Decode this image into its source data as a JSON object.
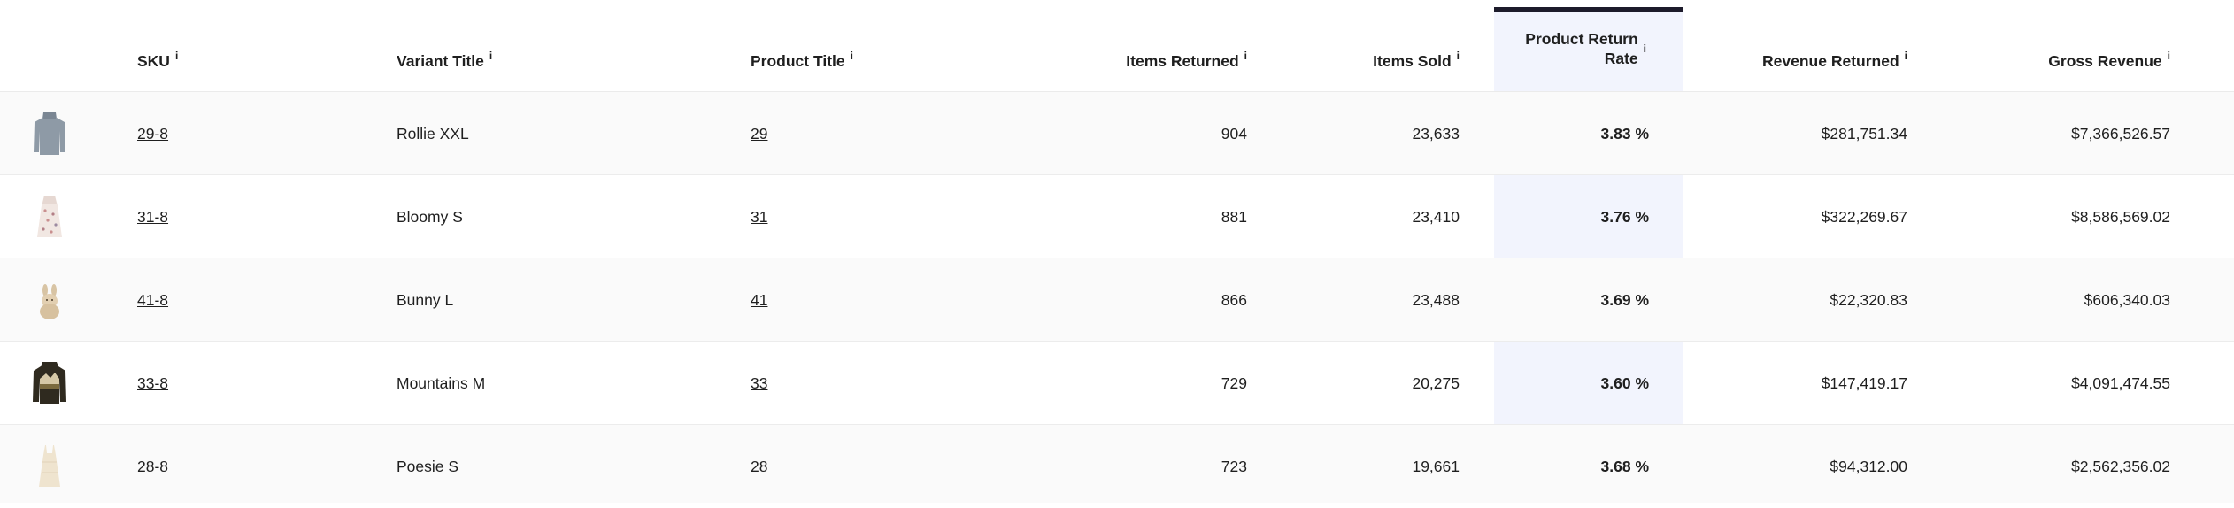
{
  "columns": {
    "sku": "SKU",
    "variant_title": "Variant Title",
    "product_title": "Product Title",
    "items_returned": "Items Returned",
    "items_sold": "Items Sold",
    "return_rate_line1": "Product Return",
    "return_rate_line2": "Rate",
    "revenue_returned": "Revenue Returned",
    "gross_revenue": "Gross Revenue",
    "info_glyph": "i"
  },
  "rows": [
    {
      "thumbnail": "grey-knit-sweater-image",
      "sku": "29-8",
      "variant_title": "Rollie XXL",
      "product_title": "29",
      "items_returned": "904",
      "items_sold": "23,633",
      "return_rate": "3.83 %",
      "revenue_returned": "$281,751.34",
      "gross_revenue": "$7,366,526.57"
    },
    {
      "thumbnail": "floral-dress-image",
      "sku": "31-8",
      "variant_title": "Bloomy S",
      "product_title": "31",
      "items_returned": "881",
      "items_sold": "23,410",
      "return_rate": "3.76 %",
      "revenue_returned": "$322,269.67",
      "gross_revenue": "$8,586,569.02"
    },
    {
      "thumbnail": "bunny-toy-image",
      "sku": "41-8",
      "variant_title": "Bunny L",
      "product_title": "41",
      "items_returned": "866",
      "items_sold": "23,488",
      "return_rate": "3.69 %",
      "revenue_returned": "$22,320.83",
      "gross_revenue": "$606,340.03"
    },
    {
      "thumbnail": "mountain-sweater-image",
      "sku": "33-8",
      "variant_title": "Mountains M",
      "product_title": "33",
      "items_returned": "729",
      "items_sold": "20,275",
      "return_rate": "3.60 %",
      "revenue_returned": "$147,419.17",
      "gross_revenue": "$4,091,474.55"
    },
    {
      "thumbnail": "cream-dress-image",
      "sku": "28-8",
      "variant_title": "Poesie S",
      "product_title": "28",
      "items_returned": "723",
      "items_sold": "19,661",
      "return_rate": "3.68 %",
      "revenue_returned": "$94,312.00",
      "gross_revenue": "$2,562,356.02"
    }
  ],
  "colors": {
    "highlight_column_bg": "#f2f4fd",
    "highlight_column_bar": "#1d1b2b",
    "row_alt_bg": "#fafafa"
  }
}
